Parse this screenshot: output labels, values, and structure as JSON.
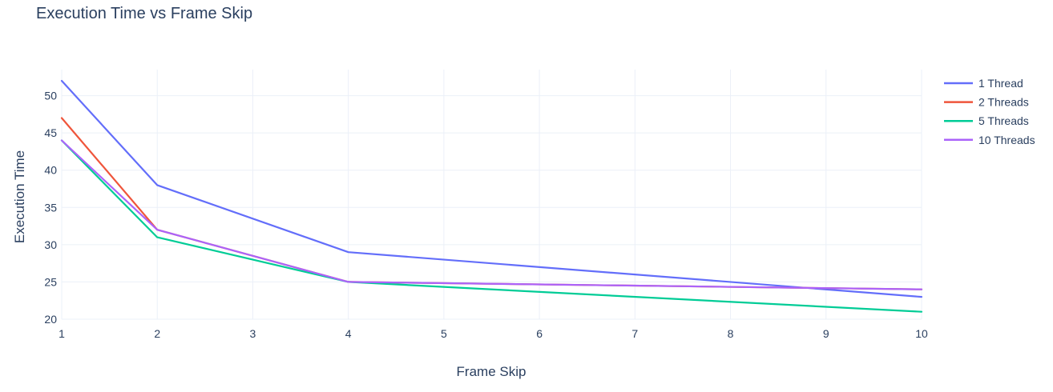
{
  "chart_data": {
    "type": "line",
    "title": "Execution Time vs Frame Skip",
    "xlabel": "Frame Skip",
    "ylabel": "Execution Time",
    "x": [
      1,
      2,
      4,
      10
    ],
    "xlim": [
      1,
      10
    ],
    "ylim": [
      20,
      53.5
    ],
    "xticks": [
      1,
      2,
      3,
      4,
      5,
      6,
      7,
      8,
      9,
      10
    ],
    "yticks": [
      20,
      25,
      30,
      35,
      40,
      45,
      50
    ],
    "grid": true,
    "legend_position": "top-right",
    "series": [
      {
        "name": "1 Thread",
        "color": "#636efa",
        "values": [
          52,
          38,
          29,
          23
        ]
      },
      {
        "name": "2 Threads",
        "color": "#ef553b",
        "values": [
          47,
          32,
          25,
          24
        ]
      },
      {
        "name": "5 Threads",
        "color": "#00cc96",
        "values": [
          44,
          31,
          25,
          21
        ]
      },
      {
        "name": "10 Threads",
        "color": "#ab63fa",
        "values": [
          44,
          32,
          25,
          24
        ]
      }
    ]
  }
}
